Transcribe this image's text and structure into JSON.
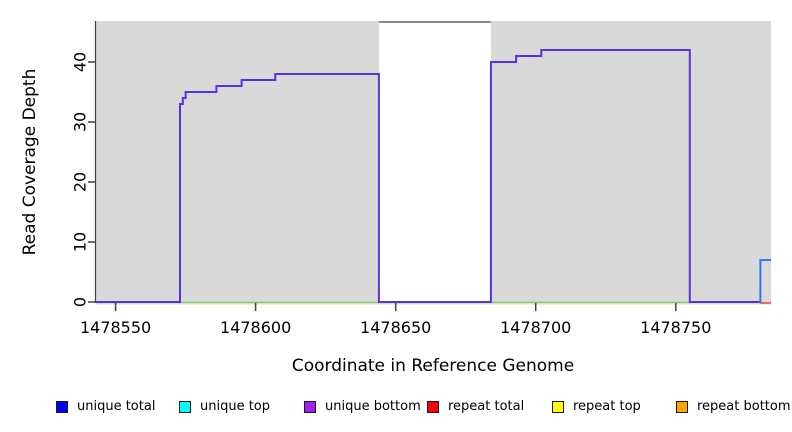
{
  "axes": {
    "x": {
      "label": "Coordinate in Reference Genome",
      "ticks": [
        {
          "value": 1478550,
          "label": "1478550"
        },
        {
          "value": 1478600,
          "label": "1478600"
        },
        {
          "value": 1478650,
          "label": "1478650"
        },
        {
          "value": 1478700,
          "label": "1478700"
        },
        {
          "value": 1478750,
          "label": "1478750"
        }
      ]
    },
    "y": {
      "label": "Read Coverage Depth",
      "ticks": [
        {
          "value": 0,
          "label": "0"
        },
        {
          "value": 10,
          "label": "10"
        },
        {
          "value": 20,
          "label": "20"
        },
        {
          "value": 30,
          "label": "30"
        },
        {
          "value": 40,
          "label": "40"
        }
      ]
    }
  },
  "legend": {
    "items": [
      {
        "label": "unique total",
        "color": "#0000ff"
      },
      {
        "label": "unique top",
        "color": "#00ffff"
      },
      {
        "label": "unique bottom",
        "color": "#a020f0"
      },
      {
        "label": "repeat total",
        "color": "#ff0000"
      },
      {
        "label": "repeat top",
        "color": "#ffff00"
      },
      {
        "label": "repeat bottom",
        "color": "#ffa500"
      }
    ]
  },
  "chart_data": {
    "type": "line",
    "subtype": "step-coverage",
    "title": "",
    "xlabel": "Coordinate in Reference Genome",
    "ylabel": "Read Coverage Depth",
    "x_range": [
      1478543,
      1478784
    ],
    "ylim": [
      0,
      47
    ],
    "x_ticks": [
      1478550,
      1478600,
      1478650,
      1478700,
      1478750
    ],
    "y_ticks": [
      0,
      10,
      20,
      30,
      40
    ],
    "grid": false,
    "legend_position": "bottom",
    "panel_bg": "#d9d9d9",
    "masked_region": {
      "x_start": 1478644,
      "x_end": 1478684,
      "fill": "#ffffff",
      "border_top_color": "#8c8c8c"
    },
    "series": [
      {
        "name": "unique total",
        "color": "#0000ff",
        "steps": [
          [
            1478543,
            0
          ],
          [
            1478573,
            33
          ],
          [
            1478574,
            34
          ],
          [
            1478575,
            35
          ],
          [
            1478586,
            36
          ],
          [
            1478595,
            37
          ],
          [
            1478607,
            38
          ],
          [
            1478644,
            0
          ],
          [
            1478684,
            40
          ],
          [
            1478693,
            41
          ],
          [
            1478702,
            42
          ],
          [
            1478755,
            0
          ],
          [
            1478780,
            7
          ],
          [
            1478784,
            7
          ]
        ]
      },
      {
        "name": "unique top",
        "color": "#00ffff",
        "steps": [
          [
            1478543,
            0
          ],
          [
            1478780,
            7
          ],
          [
            1478784,
            7
          ]
        ]
      },
      {
        "name": "unique bottom",
        "color": "#a020f0",
        "steps": [
          [
            1478543,
            0
          ],
          [
            1478573,
            33
          ],
          [
            1478574,
            34
          ],
          [
            1478575,
            35
          ],
          [
            1478586,
            36
          ],
          [
            1478595,
            37
          ],
          [
            1478607,
            38
          ],
          [
            1478644,
            0
          ],
          [
            1478684,
            40
          ],
          [
            1478693,
            41
          ],
          [
            1478702,
            42
          ],
          [
            1478755,
            0
          ],
          [
            1478784,
            0
          ]
        ]
      },
      {
        "name": "repeat total",
        "color": "#ff0000",
        "steps": [
          [
            1478543,
            0
          ],
          [
            1478784,
            0
          ]
        ]
      },
      {
        "name": "repeat top",
        "color": "#ffff00",
        "steps": [
          [
            1478543,
            0
          ],
          [
            1478784,
            0
          ]
        ]
      },
      {
        "name": "repeat bottom",
        "color": "#ffa500",
        "steps": [
          [
            1478543,
            0
          ],
          [
            1478784,
            0
          ]
        ]
      }
    ],
    "render_series": [
      {
        "name": "baseline-repeat-pale",
        "color": "#edeabd",
        "width": 1.6,
        "y_offset": 2,
        "steps": [
          [
            1478543,
            0
          ],
          [
            1478784,
            0
          ]
        ]
      },
      {
        "name": "baseline-unique-top-green",
        "color": "#7cc87c",
        "width": 1.6,
        "y_offset": 0.5,
        "steps": [
          [
            1478543,
            0
          ],
          [
            1478780,
            0
          ]
        ]
      },
      {
        "name": "repeat-total-right",
        "color": "#e8544e",
        "width": 1.6,
        "y_offset": 1,
        "steps": [
          [
            1478780,
            0
          ],
          [
            1478784,
            0
          ]
        ]
      },
      {
        "name": "unique-bottom-main",
        "color": "#5b2fe3",
        "width": 2,
        "y_offset": 0,
        "steps": [
          [
            1478543,
            0
          ],
          [
            1478573,
            33
          ],
          [
            1478574,
            34
          ],
          [
            1478575,
            35
          ],
          [
            1478586,
            36
          ],
          [
            1478595,
            37
          ],
          [
            1478607,
            38
          ],
          [
            1478644,
            0
          ],
          [
            1478684,
            40
          ],
          [
            1478693,
            41
          ],
          [
            1478702,
            42
          ],
          [
            1478755,
            0
          ],
          [
            1478780,
            0
          ]
        ]
      },
      {
        "name": "unique-top-right",
        "color": "#2b79ef",
        "width": 2,
        "y_offset": 0,
        "steps": [
          [
            1478780,
            0
          ],
          [
            1478780.2,
            7
          ],
          [
            1478784,
            7
          ]
        ]
      }
    ]
  }
}
